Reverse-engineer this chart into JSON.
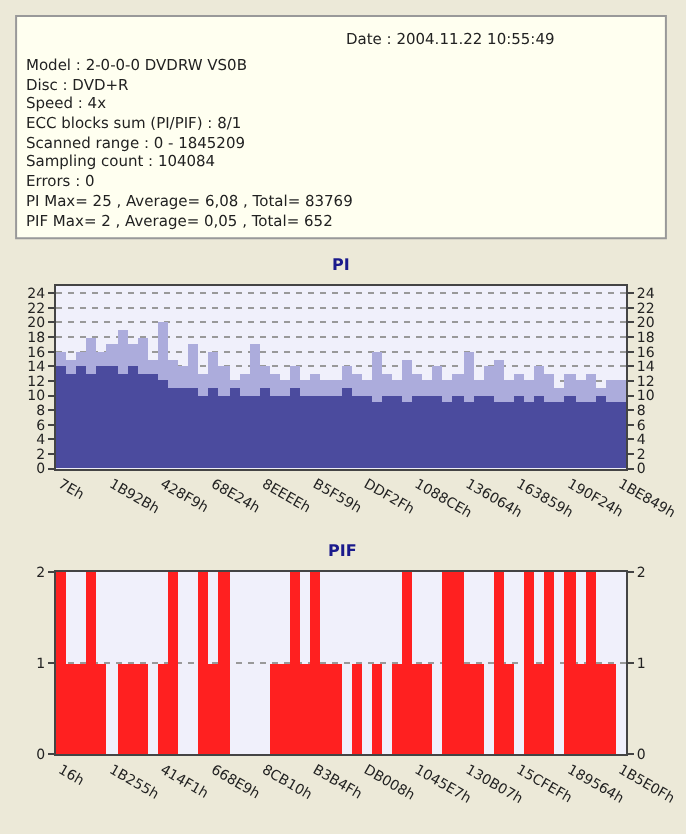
{
  "chart_data": [
    {
      "type": "other",
      "annotations": [
        "Date : 2004.11.22 10:55:49",
        "Model : 2-0-0-0 DVDRW VS0B",
        "Disc : DVD+R",
        "Speed : 4x",
        "ECC blocks sum (PI/PIF) : 8/1",
        "Scanned range : 0 - 1845209",
        "Sampling count : 104084",
        "Errors : 0",
        "PI Max= 25 , Average= 6,08 , Total= 83769",
        "PIF Max= 2 , Average= 0,05 , Total= 652"
      ]
    },
    {
      "type": "bar",
      "title": "PI",
      "stacked": true,
      "grid": "y",
      "categories": [
        "7Eh",
        null,
        null,
        null,
        null,
        "1B92Bh",
        null,
        null,
        null,
        null,
        "428F9h",
        null,
        null,
        null,
        null,
        "68E24h",
        null,
        null,
        null,
        null,
        "8EEEEh",
        null,
        null,
        null,
        null,
        "B5F59h",
        null,
        null,
        null,
        null,
        "DDF2Fh",
        null,
        null,
        null,
        null,
        "1088CEh",
        null,
        null,
        null,
        null,
        "136064h",
        null,
        null,
        null,
        null,
        "163859h",
        null,
        null,
        null,
        null,
        "190F24h",
        null,
        null,
        null,
        null,
        "1BE849h"
      ],
      "series": [
        {
          "color": "#4b4b9e",
          "values": [
            14,
            13,
            14,
            13,
            14,
            14,
            13,
            14,
            13,
            13,
            12,
            11,
            11,
            11,
            10,
            11,
            10,
            11,
            10,
            10,
            11,
            10,
            10,
            11,
            10,
            10,
            10,
            10,
            11,
            10,
            10,
            9,
            10,
            10,
            9,
            10,
            10,
            10,
            9,
            10,
            9,
            10,
            10,
            9,
            9,
            10,
            9,
            10,
            9,
            9,
            10,
            9,
            9,
            10,
            9,
            9
          ]
        },
        {
          "color": "#acacdc",
          "values": [
            2,
            2,
            2,
            5,
            2,
            3,
            6,
            3,
            5,
            2,
            8,
            4,
            3,
            6,
            3,
            5,
            4,
            1,
            3,
            7,
            3,
            3,
            2,
            3,
            2,
            3,
            2,
            2,
            3,
            3,
            2,
            7,
            3,
            2,
            6,
            3,
            2,
            4,
            3,
            3,
            7,
            2,
            4,
            6,
            3,
            3,
            3,
            4,
            4,
            2,
            3,
            3,
            4,
            1,
            3,
            3
          ]
        }
      ],
      "ylim": [
        0,
        25
      ],
      "yticks": [
        0,
        2,
        4,
        6,
        8,
        10,
        12,
        14,
        16,
        18,
        20,
        22,
        24
      ],
      "y2lim": [
        0,
        25
      ],
      "y2ticks": [
        0,
        2,
        4,
        6,
        8,
        10,
        12,
        14,
        16,
        18,
        20,
        22,
        24
      ]
    },
    {
      "type": "bar",
      "title": "PIF",
      "grid": "y",
      "categories": [
        "16h",
        null,
        null,
        null,
        null,
        "1B255h",
        null,
        null,
        null,
        null,
        "414F1h",
        null,
        null,
        null,
        null,
        "668E9h",
        null,
        null,
        null,
        null,
        "8CB10h",
        null,
        null,
        null,
        null,
        "B3B4Fh",
        null,
        null,
        null,
        null,
        "DB008h",
        null,
        null,
        null,
        null,
        "1045E7h",
        null,
        null,
        null,
        null,
        "130B07h",
        null,
        null,
        null,
        null,
        "15CFEFh",
        null,
        null,
        null,
        null,
        "189564h",
        null,
        null,
        null,
        null,
        "1B5E0Fh"
      ],
      "series": [
        {
          "color": "#ff2020",
          "values": [
            2,
            1,
            1,
            2,
            1,
            0,
            1,
            1,
            1,
            0,
            1,
            2,
            0,
            0,
            2,
            1,
            2,
            0,
            0,
            0,
            0,
            1,
            1,
            2,
            1,
            2,
            1,
            1,
            0,
            1,
            0,
            1,
            0,
            1,
            2,
            1,
            1,
            0,
            2,
            2,
            1,
            1,
            0,
            2,
            1,
            0,
            2,
            1,
            2,
            0,
            2,
            1,
            2,
            1,
            1,
            0
          ]
        }
      ],
      "ylim": [
        0,
        2
      ],
      "yticks": [
        0,
        1,
        2
      ],
      "y2lim": [
        0,
        2
      ],
      "y2ticks": [
        0,
        1,
        2
      ]
    }
  ]
}
